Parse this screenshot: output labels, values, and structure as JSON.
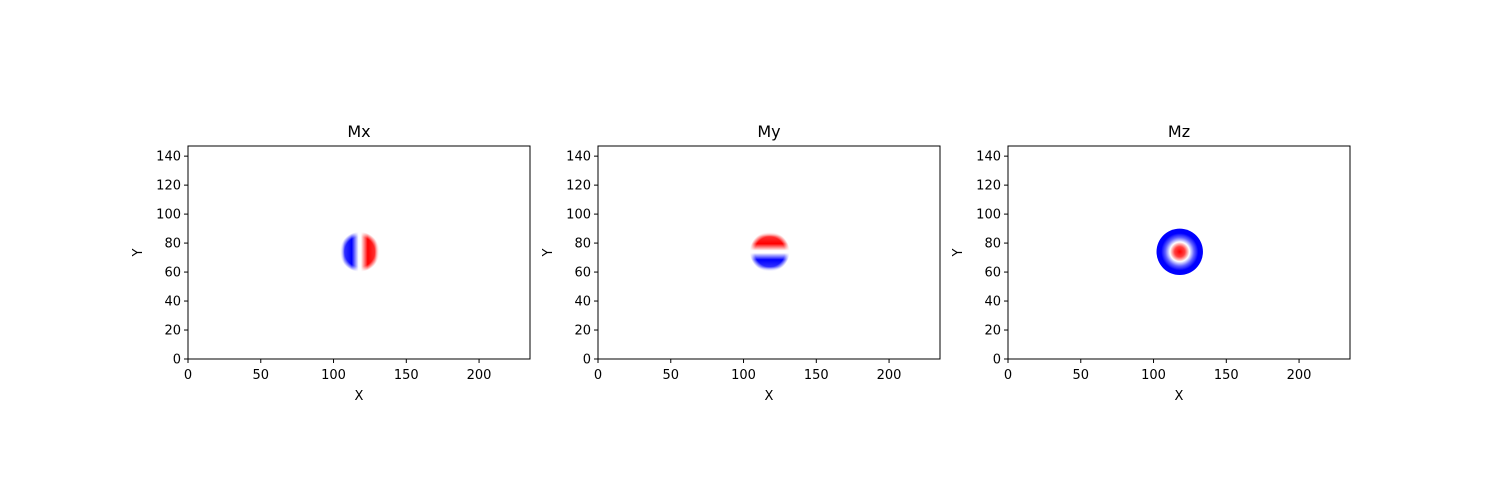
{
  "chart_data": [
    {
      "type": "heatmap",
      "title": "Mx",
      "xlabel": "X",
      "ylabel": "Y",
      "xlim": [
        0,
        235
      ],
      "ylim": [
        0,
        147
      ],
      "xticks": [
        0,
        50,
        100,
        150,
        200
      ],
      "yticks": [
        0,
        20,
        40,
        60,
        80,
        100,
        120,
        140
      ],
      "colormap": [
        "#0000ff",
        "#ffffff",
        "#ff0000"
      ],
      "value_range": [
        -1,
        1
      ],
      "feature": {
        "center": [
          118,
          74
        ],
        "radius": 11,
        "component": "x"
      }
    },
    {
      "type": "heatmap",
      "title": "My",
      "xlabel": "X",
      "ylabel": "Y",
      "xlim": [
        0,
        235
      ],
      "ylim": [
        0,
        147
      ],
      "xticks": [
        0,
        50,
        100,
        150,
        200
      ],
      "yticks": [
        0,
        20,
        40,
        60,
        80,
        100,
        120,
        140
      ],
      "colormap": [
        "#0000ff",
        "#ffffff",
        "#ff0000"
      ],
      "value_range": [
        -1,
        1
      ],
      "feature": {
        "center": [
          118,
          74
        ],
        "radius": 11,
        "component": "y"
      }
    },
    {
      "type": "heatmap",
      "title": "Mz",
      "xlabel": "X",
      "ylabel": "Y",
      "xlim": [
        0,
        235
      ],
      "ylim": [
        0,
        147
      ],
      "xticks": [
        0,
        50,
        100,
        150,
        200
      ],
      "yticks": [
        0,
        20,
        40,
        60,
        80,
        100,
        120,
        140
      ],
      "colormap": [
        "#0000ff",
        "#ffffff",
        "#ff0000"
      ],
      "value_range": [
        -1,
        1
      ],
      "feature": {
        "center": [
          118,
          74
        ],
        "radius": 11,
        "component": "z"
      }
    }
  ]
}
